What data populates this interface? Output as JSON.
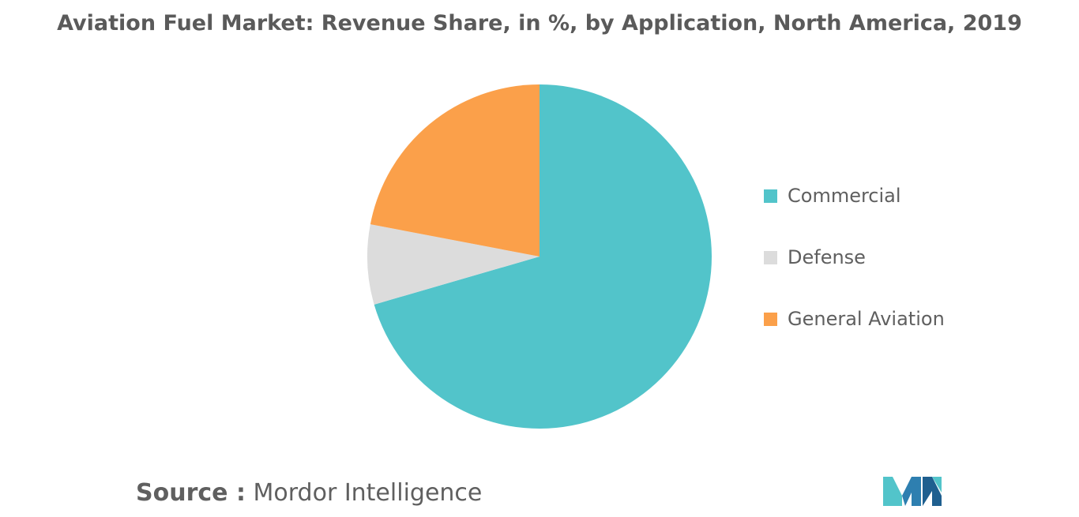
{
  "title": "Aviation Fuel Market: Revenue Share, in %, by Application, North America, 2019",
  "source": {
    "prefix": "Source :",
    "name": "Mordor Intelligence"
  },
  "chart_data": {
    "type": "pie",
    "title": "Aviation Fuel Market: Revenue Share, in %, by Application, North America, 2019",
    "start_angle_deg": 0,
    "direction": "clockwise",
    "legend_position": "right",
    "series": [
      {
        "name": "Commercial",
        "value": 70.5,
        "color": "#52c4ca"
      },
      {
        "name": "Defense",
        "value": 7.5,
        "color": "#dcdcdc"
      },
      {
        "name": "General Aviation",
        "value": 22.0,
        "color": "#fba04a"
      }
    ]
  },
  "logo": {
    "icon": "mordor-intelligence-logo-icon",
    "colors": [
      "#52c4ca",
      "#2e7fb0",
      "#1f5f8f"
    ]
  }
}
